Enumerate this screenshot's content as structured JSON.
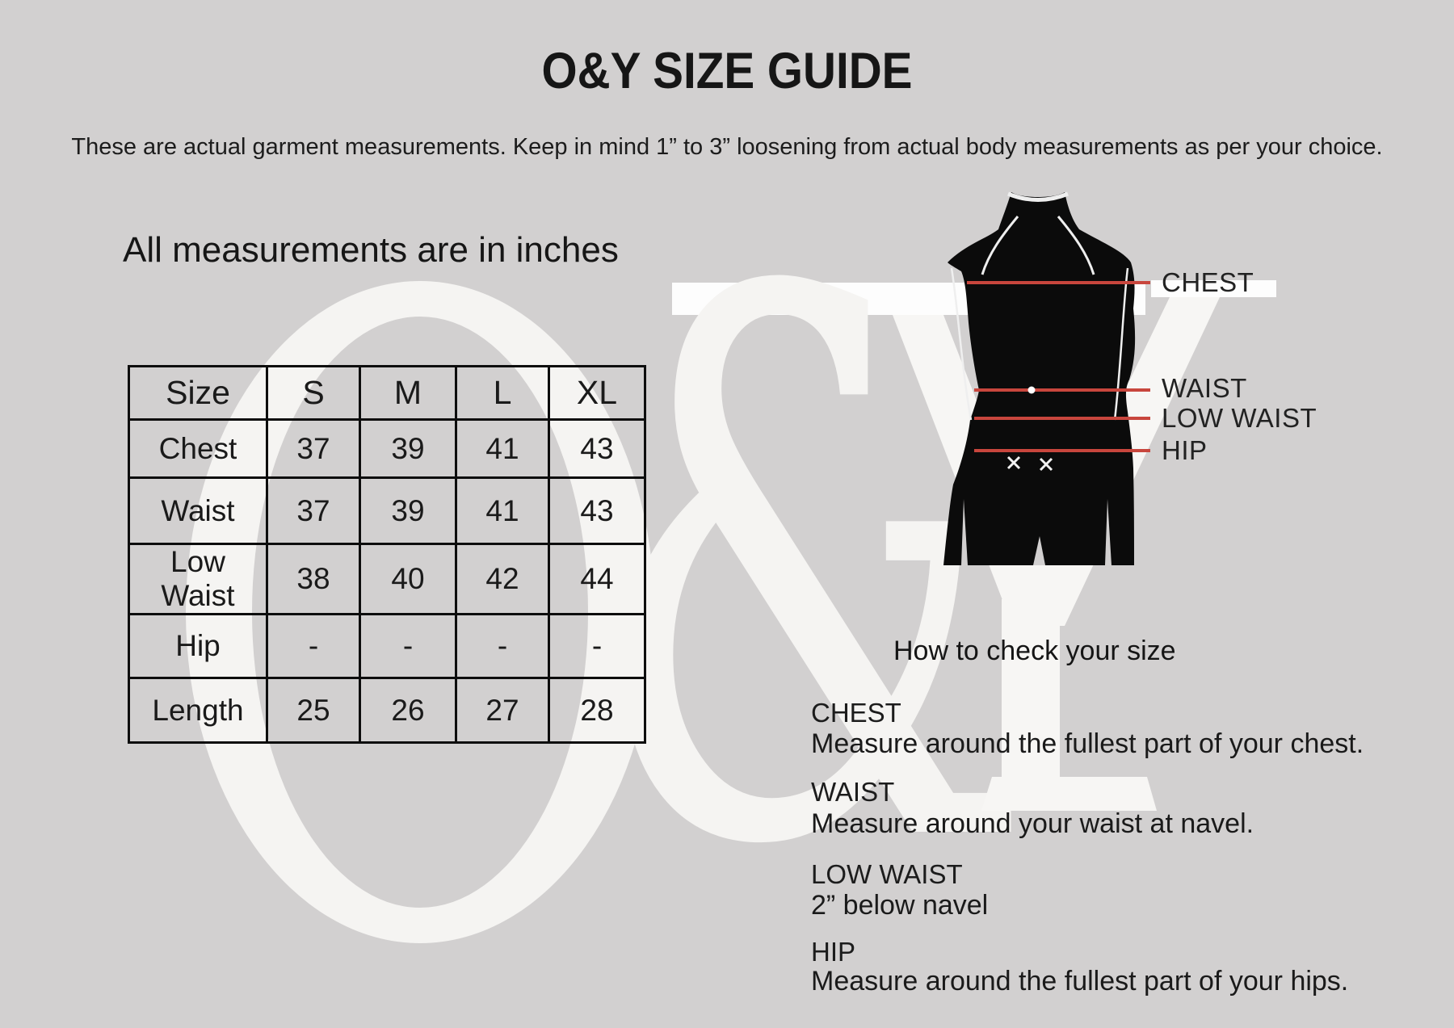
{
  "colors": {
    "background": "#d2d0d0",
    "accent_red": "#c8463d",
    "watermark": "#f5f4f2",
    "watermark_bright": "#fdfdfd",
    "silhouette": "#0b0b0b"
  },
  "header": {
    "title": "O&Y SIZE GUIDE",
    "subtitle": "These are actual garment measurements. Keep in mind 1” to 3” loosening from actual body measurements as per your choice."
  },
  "note": "All measurements are in inches",
  "table": {
    "columns": [
      "Size",
      "S",
      "M",
      "L",
      "XL"
    ],
    "rows": [
      {
        "label": "Chest",
        "values": [
          "37",
          "39",
          "41",
          "43"
        ]
      },
      {
        "label": "Waist",
        "values": [
          "37",
          "39",
          "41",
          "43"
        ]
      },
      {
        "label": "Low Waist",
        "values": [
          "38",
          "40",
          "42",
          "44"
        ]
      },
      {
        "label": "Hip",
        "values": [
          "-",
          "-",
          "-",
          "-"
        ]
      },
      {
        "label": "Length",
        "values": [
          "25",
          "26",
          "27",
          "28"
        ]
      }
    ]
  },
  "figure": {
    "labels": [
      "CHEST",
      "WAIST",
      "LOW WAIST",
      "HIP"
    ]
  },
  "guide": {
    "heading": "How to check your size",
    "sections": [
      {
        "title": "CHEST",
        "desc": "Measure around the fullest part of your chest."
      },
      {
        "title": "WAIST",
        "desc": "Measure around your waist at navel."
      },
      {
        "title": "LOW WAIST",
        "desc": "2” below navel"
      },
      {
        "title": "HIP",
        "desc": "Measure around the fullest part of your hips."
      }
    ]
  },
  "watermark": {
    "text": "O&Y",
    "amp": "&"
  }
}
